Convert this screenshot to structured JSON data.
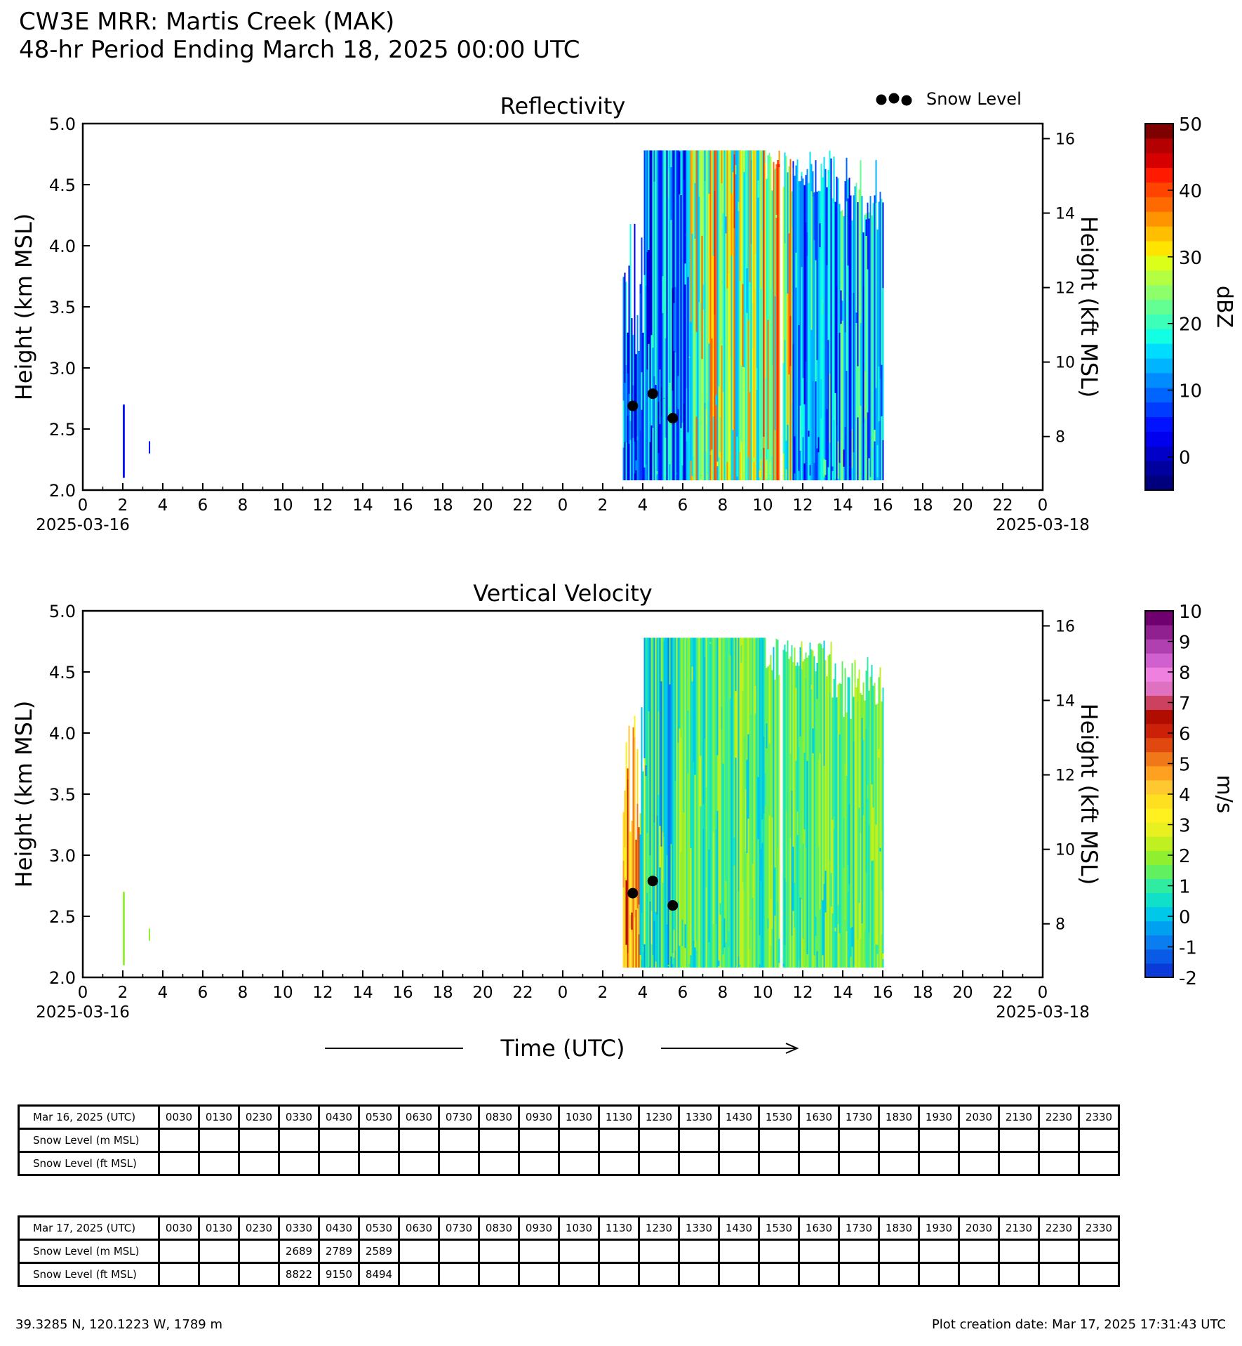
{
  "header": {
    "title": "CW3E MRR: Martis Creek (MAK)",
    "subtitle": "48-hr Period Ending March 18, 2025 00:00 UTC"
  },
  "chart_data": [
    {
      "type": "heatmap",
      "title": "Reflectivity",
      "ylabel": "Height (km MSL)",
      "ylabel_right": "Height (kft MSL)",
      "ylim": [
        2.0,
        5.0
      ],
      "yticks": [
        "2.0",
        "2.5",
        "3.0",
        "3.5",
        "4.0",
        "4.5",
        "5.0"
      ],
      "yticks_right": [
        "8",
        "10",
        "12",
        "14",
        "16"
      ],
      "xticks": [
        "0",
        "2",
        "4",
        "6",
        "8",
        "10",
        "12",
        "14",
        "16",
        "18",
        "20",
        "22",
        "0",
        "2",
        "4",
        "6",
        "8",
        "10",
        "12",
        "14",
        "16",
        "18",
        "20",
        "22",
        "0"
      ],
      "xdate_start": "2025-03-16",
      "xdate_end": "2025-03-18",
      "xlim_hours": [
        0,
        48
      ],
      "legend": {
        "marker": "●●●",
        "label": "Snow Level",
        "placement": "top-right"
      },
      "colorbar": {
        "label": "dBZ",
        "ticks": [
          "50",
          "40",
          "30",
          "20",
          "10",
          "0"
        ],
        "range": [
          -5,
          50
        ],
        "colors": [
          "#00007f",
          "#00009f",
          "#0000c8",
          "#0000ee",
          "#0012ff",
          "#003cff",
          "#0064ff",
          "#008cff",
          "#00b4ff",
          "#00dcff",
          "#12ffe4",
          "#3cffba",
          "#64ff92",
          "#8cff6a",
          "#b4ff42",
          "#dcff1a",
          "#ffe400",
          "#ffbe00",
          "#ff9400",
          "#ff6a00",
          "#ff4400",
          "#ff1a00",
          "#d70000",
          "#b40000",
          "#7f0000"
        ]
      },
      "snow_level": [
        {
          "time_hours": 27.5,
          "height_km": 2.689
        },
        {
          "time_hours": 28.5,
          "height_km": 2.789
        },
        {
          "time_hours": 29.5,
          "height_km": 2.589
        }
      ],
      "echo_regions": [
        {
          "start_hours": 2.0,
          "end_hours": 2.1,
          "bottom_km": 2.1,
          "top_km": 2.7,
          "dominant": "blue"
        },
        {
          "start_hours": 3.3,
          "end_hours": 3.35,
          "bottom_km": 2.3,
          "top_km": 2.4,
          "dominant": "blue"
        },
        {
          "start_hours": 27.0,
          "end_hours": 40.0,
          "bottom_km": 2.08,
          "top_km": 4.78,
          "dominant": "blue-cyan-green-yellow-orange"
        }
      ]
    },
    {
      "type": "heatmap",
      "title": "Vertical Velocity",
      "ylabel": "Height (km MSL)",
      "ylabel_right": "Height (kft MSL)",
      "ylim": [
        2.0,
        5.0
      ],
      "yticks": [
        "2.0",
        "2.5",
        "3.0",
        "3.5",
        "4.0",
        "4.5",
        "5.0"
      ],
      "yticks_right": [
        "8",
        "10",
        "12",
        "14",
        "16"
      ],
      "xticks": [
        "0",
        "2",
        "4",
        "6",
        "8",
        "10",
        "12",
        "14",
        "16",
        "18",
        "20",
        "22",
        "0",
        "2",
        "4",
        "6",
        "8",
        "10",
        "12",
        "14",
        "16",
        "18",
        "20",
        "22",
        "0"
      ],
      "xdate_start": "2025-03-16",
      "xdate_end": "2025-03-18",
      "xlim_hours": [
        0,
        48
      ],
      "xlabel": "Time (UTC)",
      "colorbar": {
        "label": "m/s",
        "ticks": [
          "10",
          "9",
          "8",
          "7",
          "6",
          "5",
          "4",
          "3",
          "2",
          "1",
          "0",
          "-1",
          "-2"
        ],
        "range": [
          -2,
          10
        ],
        "colors": [
          "#0a3ad8",
          "#0a5ae8",
          "#0a7ef0",
          "#00a0f0",
          "#00c8e8",
          "#10e0c8",
          "#30eca0",
          "#60f060",
          "#90f030",
          "#c0f020",
          "#e8f020",
          "#fff020",
          "#ffe020",
          "#ffc830",
          "#ffa020",
          "#f07818",
          "#e04810",
          "#cc2008",
          "#b00c00",
          "#cc4060",
          "#e070c0",
          "#f080e0",
          "#d060d0",
          "#b040b0",
          "#902090",
          "#700070"
        ]
      },
      "snow_level": [
        {
          "time_hours": 27.5,
          "height_km": 2.689
        },
        {
          "time_hours": 28.5,
          "height_km": 2.789
        },
        {
          "time_hours": 29.5,
          "height_km": 2.589
        }
      ],
      "echo_regions": [
        {
          "start_hours": 2.0,
          "end_hours": 2.1,
          "bottom_km": 2.1,
          "top_km": 2.7,
          "dominant": "green"
        },
        {
          "start_hours": 3.3,
          "end_hours": 3.35,
          "bottom_km": 2.3,
          "top_km": 2.4,
          "dominant": "green"
        },
        {
          "start_hours": 27.0,
          "end_hours": 40.0,
          "bottom_km": 2.08,
          "top_km": 4.78,
          "dominant": "orange-yellow-cyan-green"
        }
      ]
    }
  ],
  "tables": [
    {
      "date_label": "Mar 16, 2025 (UTC)",
      "row_labels": [
        "Snow Level (m MSL)",
        "Snow Level (ft MSL)"
      ],
      "times": [
        "0030",
        "0130",
        "0230",
        "0330",
        "0430",
        "0530",
        "0630",
        "0730",
        "0830",
        "0930",
        "1030",
        "1130",
        "1230",
        "1330",
        "1430",
        "1530",
        "1630",
        "1730",
        "1830",
        "1930",
        "2030",
        "2130",
        "2230",
        "2330"
      ],
      "snow_m": [
        "",
        "",
        "",
        "",
        "",
        "",
        "",
        "",
        "",
        "",
        "",
        "",
        "",
        "",
        "",
        "",
        "",
        "",
        "",
        "",
        "",
        "",
        "",
        ""
      ],
      "snow_ft": [
        "",
        "",
        "",
        "",
        "",
        "",
        "",
        "",
        "",
        "",
        "",
        "",
        "",
        "",
        "",
        "",
        "",
        "",
        "",
        "",
        "",
        "",
        "",
        ""
      ]
    },
    {
      "date_label": "Mar 17, 2025 (UTC)",
      "row_labels": [
        "Snow Level (m MSL)",
        "Snow Level (ft MSL)"
      ],
      "times": [
        "0030",
        "0130",
        "0230",
        "0330",
        "0430",
        "0530",
        "0630",
        "0730",
        "0830",
        "0930",
        "1030",
        "1130",
        "1230",
        "1330",
        "1430",
        "1530",
        "1630",
        "1730",
        "1830",
        "1930",
        "2030",
        "2130",
        "2230",
        "2330"
      ],
      "snow_m": [
        "",
        "",
        "",
        "2689",
        "2789",
        "2589",
        "",
        "",
        "",
        "",
        "",
        "",
        "",
        "",
        "",
        "",
        "",
        "",
        "",
        "",
        "",
        "",
        "",
        ""
      ],
      "snow_ft": [
        "",
        "",
        "",
        "8822",
        "9150",
        "8494",
        "",
        "",
        "",
        "",
        "",
        "",
        "",
        "",
        "",
        "",
        "",
        "",
        "",
        "",
        "",
        "",
        "",
        ""
      ]
    }
  ],
  "footer": {
    "location": "39.3285 N, 120.1223 W, 1789 m",
    "creation": "Plot creation date: Mar 17, 2025 17:31:43 UTC"
  }
}
